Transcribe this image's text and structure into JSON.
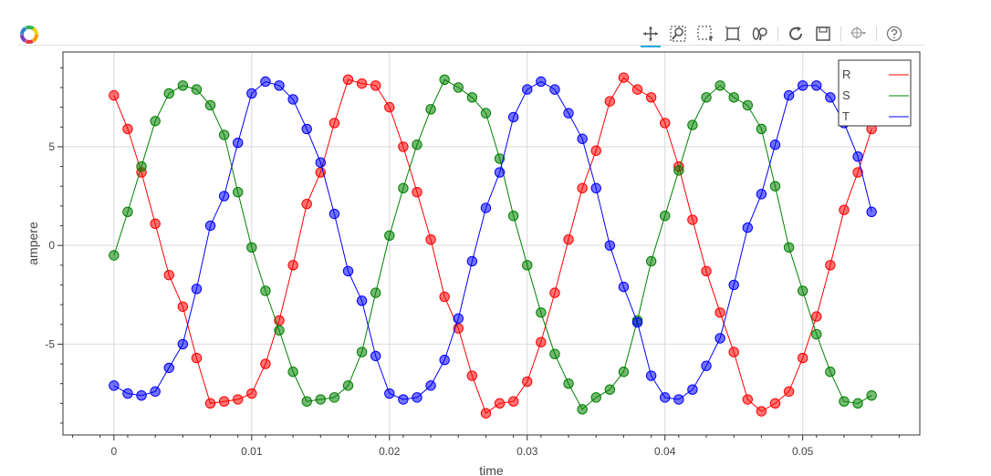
{
  "toolbar": {
    "icons": [
      "pan-icon",
      "box-zoom-icon",
      "box-select-icon",
      "resize-icon",
      "wheel-zoom-icon",
      "reset-icon",
      "save-icon",
      "crosshair-icon",
      "help-icon"
    ]
  },
  "chart_data": {
    "type": "line",
    "xlabel": "time",
    "ylabel": "ampere",
    "xlim": [
      -0.0037,
      0.0585
    ],
    "ylim": [
      -9.6,
      9.8
    ],
    "xticks": [
      0,
      0.01,
      0.02,
      0.03,
      0.04,
      0.05
    ],
    "xtick_labels": [
      "0",
      "0.01",
      "0.02",
      "0.03",
      "0.04",
      "0.05"
    ],
    "yticks": [
      -5,
      0,
      5
    ],
    "ytick_labels": [
      "-5",
      "0",
      "5"
    ],
    "grid": true,
    "markers": true,
    "legend_position": "top-right",
    "x": [
      0,
      0.001,
      0.002,
      0.003,
      0.004,
      0.005,
      0.006,
      0.007,
      0.008,
      0.009,
      0.01,
      0.011,
      0.012,
      0.013,
      0.014,
      0.015,
      0.016,
      0.017,
      0.018,
      0.019,
      0.02,
      0.021,
      0.022,
      0.023,
      0.024,
      0.025,
      0.026,
      0.027,
      0.028,
      0.029,
      0.03,
      0.031,
      0.032,
      0.033,
      0.034,
      0.035,
      0.036,
      0.037,
      0.038,
      0.039,
      0.04,
      0.041,
      0.042,
      0.043,
      0.044,
      0.045,
      0.046,
      0.047,
      0.048,
      0.049,
      0.05,
      0.051,
      0.052,
      0.053,
      0.054,
      0.055
    ],
    "series": [
      {
        "name": "R",
        "color": "#ff0000",
        "values": [
          7.6,
          5.9,
          3.7,
          1.1,
          -1.5,
          -3.1,
          -5.7,
          -8.0,
          -7.9,
          -7.8,
          -7.5,
          -6.0,
          -3.8,
          -1.0,
          2.1,
          3.7,
          6.2,
          8.4,
          8.2,
          8.1,
          7.0,
          5.0,
          2.7,
          0.3,
          -2.6,
          -4.2,
          -6.6,
          -8.5,
          -8.0,
          -7.9,
          -6.9,
          -4.9,
          -2.4,
          0.3,
          2.9,
          4.8,
          7.3,
          8.5,
          7.9,
          7.5,
          6.2,
          4.0,
          1.3,
          -1.3,
          -3.4,
          -5.4,
          -7.8,
          -8.4,
          -8.0,
          -7.4,
          -5.7,
          -3.6,
          -1.0,
          1.8,
          3.7,
          5.9
        ]
      },
      {
        "name": "S",
        "color": "#008000",
        "values": [
          -0.5,
          1.7,
          4.0,
          6.3,
          7.7,
          8.1,
          7.9,
          7.1,
          5.6,
          2.7,
          -0.1,
          -2.3,
          -4.3,
          -6.4,
          -7.9,
          -7.8,
          -7.7,
          -7.1,
          -5.4,
          -2.4,
          0.5,
          2.9,
          5.1,
          6.9,
          8.4,
          8.0,
          7.5,
          6.7,
          4.4,
          1.5,
          -1.0,
          -3.4,
          -5.5,
          -7.0,
          -8.3,
          -7.7,
          -7.3,
          -6.4,
          -3.8,
          -0.8,
          1.5,
          3.8,
          6.1,
          7.5,
          8.1,
          7.5,
          7.1,
          5.9,
          3.0,
          -0.1,
          -2.3,
          -4.5,
          -6.4,
          -7.9,
          -8.0,
          -7.6
        ]
      },
      {
        "name": "T",
        "color": "#0000ff",
        "values": [
          -7.1,
          -7.5,
          -7.6,
          -7.4,
          -6.2,
          -5.0,
          -2.2,
          1.0,
          2.5,
          5.2,
          7.7,
          8.3,
          8.1,
          7.4,
          5.9,
          4.2,
          1.6,
          -1.3,
          -2.8,
          -5.6,
          -7.5,
          -7.8,
          -7.7,
          -7.1,
          -5.8,
          -3.7,
          -0.8,
          1.9,
          3.7,
          6.5,
          7.9,
          8.3,
          7.9,
          6.7,
          5.4,
          2.9,
          0.0,
          -2.1,
          -3.9,
          -6.6,
          -7.7,
          -7.8,
          -7.3,
          -6.1,
          -4.7,
          -2.0,
          0.9,
          2.6,
          5.1,
          7.6,
          8.1,
          8.1,
          7.5,
          6.2,
          4.5,
          1.7
        ]
      }
    ]
  }
}
